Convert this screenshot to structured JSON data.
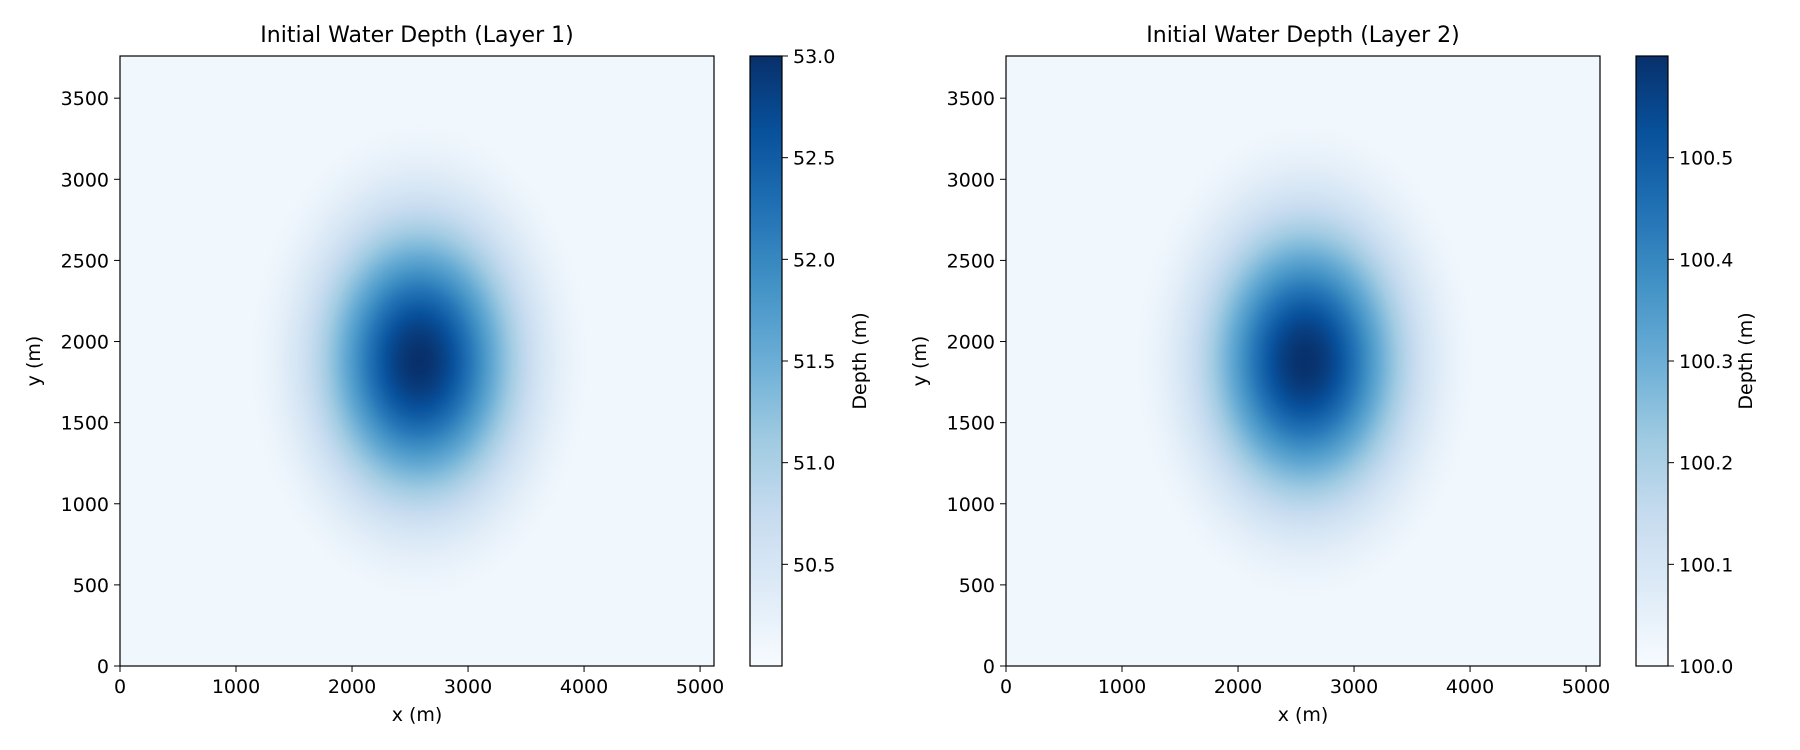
{
  "chart_data": [
    {
      "type": "heatmap",
      "title": "Initial Water Depth (Layer 1)",
      "xlabel": "x (m)",
      "ylabel": "y (m)",
      "xlim": [
        0,
        5120
      ],
      "ylim": [
        0,
        3760
      ],
      "x_ticks": [
        0,
        1000,
        2000,
        3000,
        4000,
        5000
      ],
      "y_ticks": [
        0,
        500,
        1000,
        1500,
        2000,
        2500,
        3000,
        3500
      ],
      "field": {
        "shape": "gaussian",
        "center_x": 2580,
        "center_y": 1880,
        "sigma": 560,
        "base": 50.0,
        "peak": 53.0
      },
      "colorbar": {
        "label": "Depth (m)",
        "min": 50.0,
        "max": 53.0,
        "ticks": [
          "50.5",
          "51.0",
          "51.5",
          "52.0",
          "52.5",
          "53.0"
        ],
        "colormap": "Blues"
      }
    },
    {
      "type": "heatmap",
      "title": "Initial Water Depth (Layer 2)",
      "xlabel": "x (m)",
      "ylabel": "y (m)",
      "xlim": [
        0,
        5120
      ],
      "ylim": [
        0,
        3760
      ],
      "x_ticks": [
        0,
        1000,
        2000,
        3000,
        4000,
        5000
      ],
      "y_ticks": [
        0,
        500,
        1000,
        1500,
        2000,
        2500,
        3000,
        3500
      ],
      "field": {
        "shape": "gaussian",
        "center_x": 2580,
        "center_y": 1880,
        "sigma": 560,
        "base": 100.0,
        "peak": 100.6
      },
      "colorbar": {
        "label": "Depth (m)",
        "min": 100.0,
        "max": 100.6,
        "ticks": [
          "100.0",
          "100.1",
          "100.2",
          "100.3",
          "100.4",
          "100.5"
        ],
        "colormap": "Blues"
      }
    }
  ]
}
